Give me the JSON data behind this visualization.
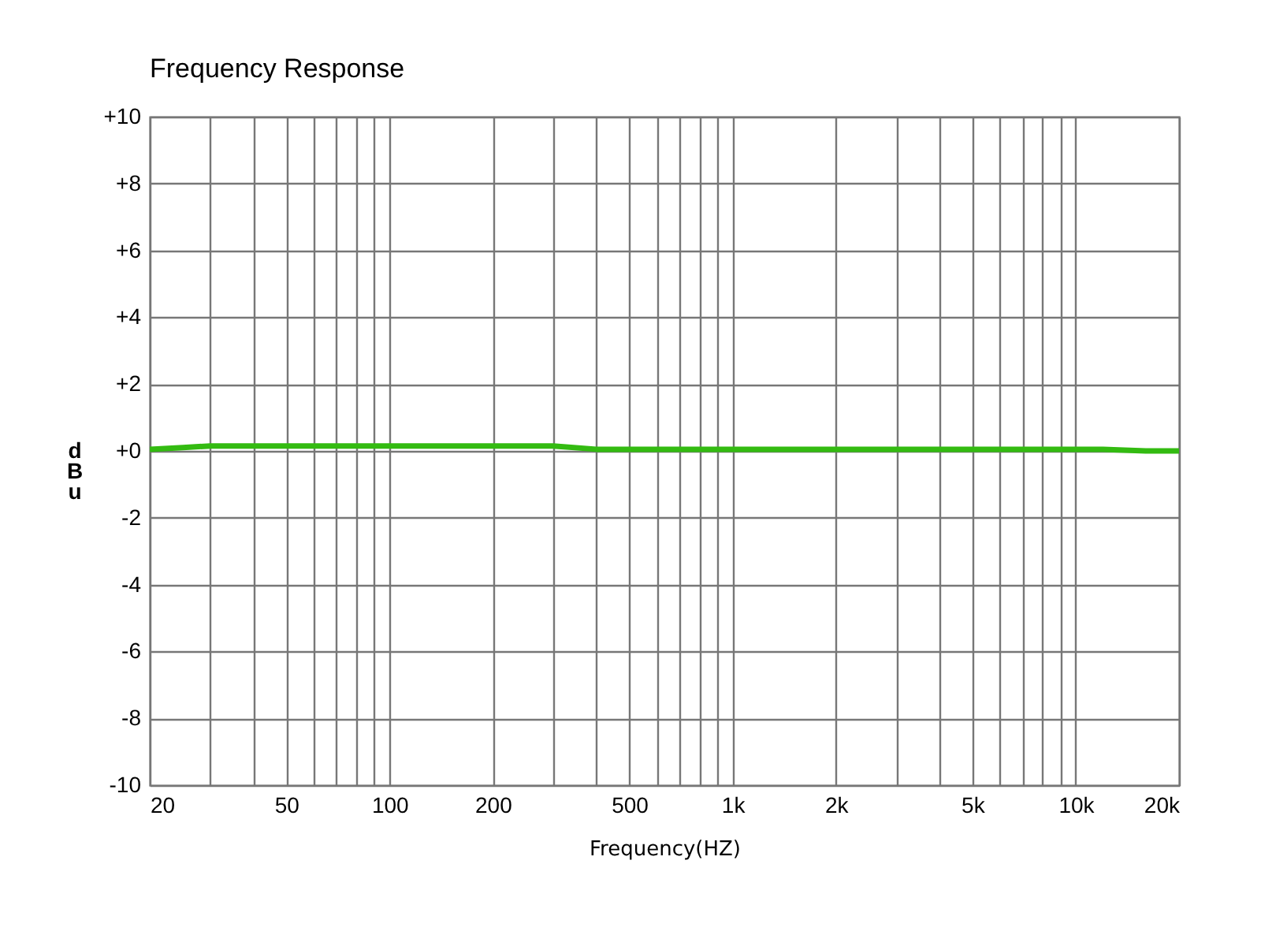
{
  "chart_data": {
    "type": "line",
    "title": "Frequency Response",
    "xlabel": "Frequency(HZ)",
    "ylabel": "dBu",
    "log": "x",
    "grid": true,
    "marker": "none",
    "line_style": "solid",
    "x": [
      20,
      25,
      30,
      100,
      300,
      400,
      1000,
      5000,
      12000,
      16000,
      20000
    ],
    "series": [
      {
        "color": "#33bb11",
        "values": [
          0.05,
          0.1,
          0.15,
          0.15,
          0.15,
          0.05,
          0.05,
          0.05,
          0.05,
          0,
          0
        ]
      }
    ],
    "xlim": [
      20,
      20000
    ],
    "ylim": [
      -10,
      10
    ],
    "xticks": [
      {
        "value": 20,
        "label": "20"
      },
      {
        "value": 30,
        "label": null
      },
      {
        "value": 40,
        "label": null
      },
      {
        "value": 50,
        "label": "50"
      },
      {
        "value": 60,
        "label": null
      },
      {
        "value": 70,
        "label": null
      },
      {
        "value": 80,
        "label": null
      },
      {
        "value": 90,
        "label": null
      },
      {
        "value": 100,
        "label": "100"
      },
      {
        "value": 200,
        "label": "200"
      },
      {
        "value": 300,
        "label": null
      },
      {
        "value": 400,
        "label": null
      },
      {
        "value": 500,
        "label": "500"
      },
      {
        "value": 600,
        "label": null
      },
      {
        "value": 700,
        "label": null
      },
      {
        "value": 800,
        "label": null
      },
      {
        "value": 900,
        "label": null
      },
      {
        "value": 1000,
        "label": "1k"
      },
      {
        "value": 2000,
        "label": "2k"
      },
      {
        "value": 3000,
        "label": null
      },
      {
        "value": 4000,
        "label": null
      },
      {
        "value": 5000,
        "label": "5k"
      },
      {
        "value": 6000,
        "label": null
      },
      {
        "value": 7000,
        "label": null
      },
      {
        "value": 8000,
        "label": null
      },
      {
        "value": 9000,
        "label": null
      },
      {
        "value": 10000,
        "label": "10k"
      },
      {
        "value": 20000,
        "label": "20k"
      }
    ],
    "yticks": [
      {
        "value": -10,
        "label": "-10"
      },
      {
        "value": -8,
        "label": "-8"
      },
      {
        "value": -6,
        "label": "-6"
      },
      {
        "value": -4,
        "label": "-4"
      },
      {
        "value": -2,
        "label": "-2"
      },
      {
        "value": 0,
        "label": "+0"
      },
      {
        "value": 2,
        "label": "+2"
      },
      {
        "value": 4,
        "label": "+4"
      },
      {
        "value": 6,
        "label": "+6"
      },
      {
        "value": 8,
        "label": "+8"
      },
      {
        "value": 10,
        "label": "+10"
      }
    ]
  }
}
